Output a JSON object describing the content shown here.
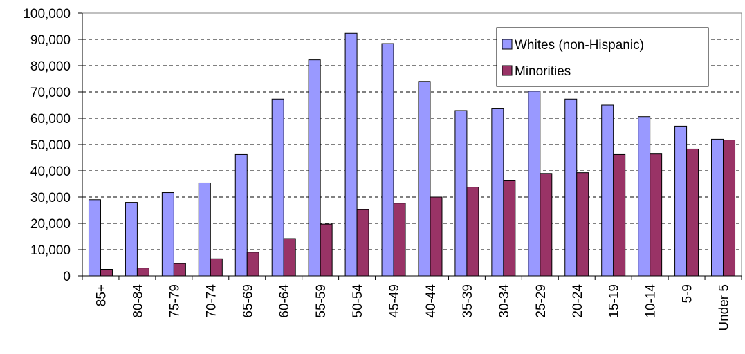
{
  "chart_data": {
    "type": "bar",
    "categories": [
      "85+",
      "80-84",
      "75-79",
      "70-74",
      "65-69",
      "60-64",
      "55-59",
      "50-54",
      "45-49",
      "40-44",
      "35-39",
      "30-34",
      "25-29",
      "20-24",
      "15-19",
      "10-14",
      "5-9",
      "Under 5"
    ],
    "series": [
      {
        "name": "Whites (non-Hispanic)",
        "color": "#9999ff",
        "values": [
          29000,
          28000,
          31700,
          35400,
          46200,
          67300,
          82200,
          92300,
          88400,
          74000,
          62900,
          63800,
          70300,
          67300,
          65000,
          60600,
          57000,
          52000
        ]
      },
      {
        "name": "Minorities",
        "color": "#993366",
        "values": [
          2500,
          3000,
          4700,
          6500,
          9000,
          14200,
          19700,
          25200,
          27700,
          30000,
          33800,
          36200,
          39000,
          39300,
          46200,
          46400,
          48300,
          51700
        ]
      }
    ],
    "ylim": [
      0,
      100000
    ],
    "yticks": [
      0,
      {
        "value": 10000,
        "label": "10,000"
      },
      {
        "value": 20000,
        "label": "20,000"
      },
      {
        "value": 30000,
        "label": "30,000"
      },
      {
        "value": 40000,
        "label": "40,000"
      },
      {
        "value": 50000,
        "label": "50,000"
      },
      {
        "value": 60000,
        "label": "60,000"
      },
      {
        "value": 70000,
        "label": "70,000"
      },
      {
        "value": 80000,
        "label": "80,000"
      },
      {
        "value": 90000,
        "label": "90,000"
      },
      {
        "value": 100000,
        "label": "100,000"
      }
    ],
    "grid": true,
    "legend": "upper right"
  }
}
